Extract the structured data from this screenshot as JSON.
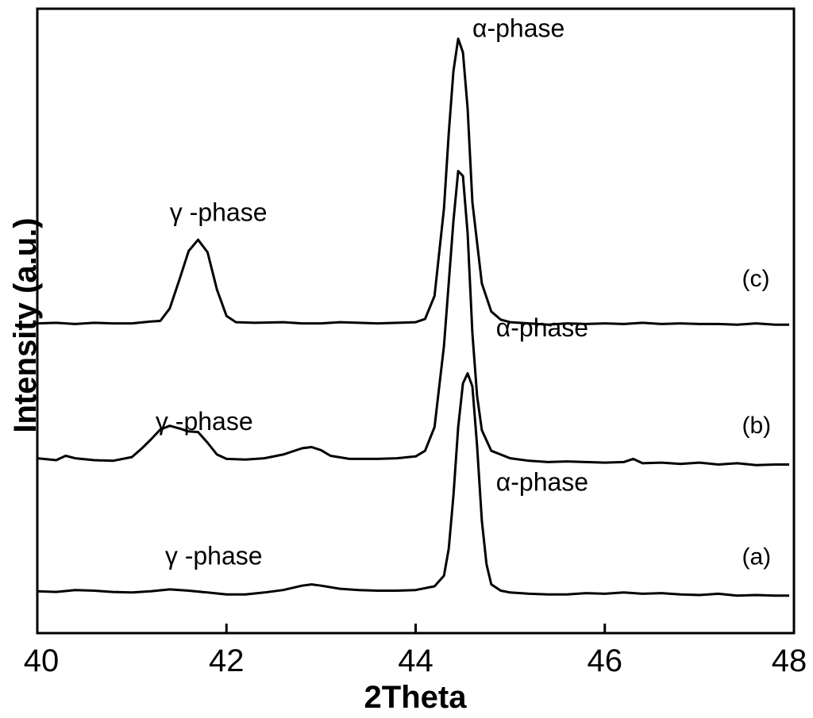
{
  "chart_data": {
    "type": "line",
    "xlabel": "2Theta",
    "ylabel": "Intensity (a.u.)",
    "xlim": [
      40,
      48
    ],
    "ylim": [
      0,
      100
    ],
    "xticks": [
      40,
      42,
      44,
      46,
      48
    ],
    "yticks_shown": false,
    "grid": false,
    "series": [
      {
        "name": "(a)",
        "points": [
          [
            40.0,
            6.7
          ],
          [
            40.2,
            6.6
          ],
          [
            40.4,
            6.9
          ],
          [
            40.6,
            6.8
          ],
          [
            40.8,
            6.6
          ],
          [
            41.0,
            6.5
          ],
          [
            41.2,
            6.7
          ],
          [
            41.4,
            7.0
          ],
          [
            41.6,
            6.8
          ],
          [
            41.8,
            6.5
          ],
          [
            42.0,
            6.2
          ],
          [
            42.2,
            6.2
          ],
          [
            42.4,
            6.5
          ],
          [
            42.6,
            6.9
          ],
          [
            42.8,
            7.6
          ],
          [
            42.9,
            7.8
          ],
          [
            43.0,
            7.6
          ],
          [
            43.2,
            7.1
          ],
          [
            43.4,
            6.9
          ],
          [
            43.6,
            6.8
          ],
          [
            43.8,
            6.8
          ],
          [
            44.0,
            6.9
          ],
          [
            44.2,
            7.5
          ],
          [
            44.3,
            9.2
          ],
          [
            44.35,
            13.5
          ],
          [
            44.4,
            22.0
          ],
          [
            44.45,
            33.0
          ],
          [
            44.5,
            40.0
          ],
          [
            44.55,
            41.6
          ],
          [
            44.6,
            39.5
          ],
          [
            44.65,
            30.0
          ],
          [
            44.7,
            18.0
          ],
          [
            44.75,
            11.0
          ],
          [
            44.8,
            7.8
          ],
          [
            44.9,
            6.8
          ],
          [
            45.0,
            6.5
          ],
          [
            45.2,
            6.3
          ],
          [
            45.4,
            6.2
          ],
          [
            45.6,
            6.2
          ],
          [
            45.8,
            6.4
          ],
          [
            46.0,
            6.3
          ],
          [
            46.2,
            6.5
          ],
          [
            46.4,
            6.3
          ],
          [
            46.6,
            6.4
          ],
          [
            46.8,
            6.2
          ],
          [
            47.0,
            6.1
          ],
          [
            47.2,
            6.3
          ],
          [
            47.4,
            6.0
          ],
          [
            47.6,
            6.1
          ],
          [
            47.8,
            6.0
          ],
          [
            47.95,
            6.0
          ]
        ]
      },
      {
        "name": "(b)",
        "points": [
          [
            40.0,
            28.0
          ],
          [
            40.2,
            27.7
          ],
          [
            40.3,
            28.4
          ],
          [
            40.4,
            28.0
          ],
          [
            40.6,
            27.7
          ],
          [
            40.8,
            27.6
          ],
          [
            41.0,
            28.2
          ],
          [
            41.1,
            29.5
          ],
          [
            41.2,
            31.0
          ],
          [
            41.3,
            32.6
          ],
          [
            41.4,
            33.2
          ],
          [
            41.5,
            32.8
          ],
          [
            41.6,
            32.3
          ],
          [
            41.7,
            32.2
          ],
          [
            41.8,
            30.5
          ],
          [
            41.9,
            28.6
          ],
          [
            42.0,
            27.9
          ],
          [
            42.2,
            27.8
          ],
          [
            42.4,
            28.0
          ],
          [
            42.6,
            28.6
          ],
          [
            42.8,
            29.6
          ],
          [
            42.9,
            29.8
          ],
          [
            43.0,
            29.3
          ],
          [
            43.1,
            28.4
          ],
          [
            43.3,
            27.9
          ],
          [
            43.6,
            27.9
          ],
          [
            43.8,
            28.0
          ],
          [
            44.0,
            28.3
          ],
          [
            44.1,
            29.2
          ],
          [
            44.2,
            33.0
          ],
          [
            44.3,
            46.0
          ],
          [
            44.4,
            66.0
          ],
          [
            44.45,
            74.0
          ],
          [
            44.5,
            73.2
          ],
          [
            44.55,
            64.0
          ],
          [
            44.6,
            48.0
          ],
          [
            44.65,
            38.0
          ],
          [
            44.7,
            32.5
          ],
          [
            44.8,
            29.2
          ],
          [
            45.0,
            28.0
          ],
          [
            45.2,
            27.6
          ],
          [
            45.4,
            27.4
          ],
          [
            45.6,
            27.5
          ],
          [
            45.8,
            27.4
          ],
          [
            46.0,
            27.3
          ],
          [
            46.2,
            27.4
          ],
          [
            46.3,
            27.9
          ],
          [
            46.4,
            27.2
          ],
          [
            46.6,
            27.3
          ],
          [
            46.8,
            27.1
          ],
          [
            47.0,
            27.3
          ],
          [
            47.2,
            27.0
          ],
          [
            47.4,
            27.2
          ],
          [
            47.6,
            26.9
          ],
          [
            47.8,
            27.0
          ],
          [
            47.95,
            27.0
          ]
        ]
      },
      {
        "name": "(c)",
        "points": [
          [
            40.0,
            49.6
          ],
          [
            40.2,
            49.7
          ],
          [
            40.4,
            49.5
          ],
          [
            40.6,
            49.7
          ],
          [
            40.8,
            49.6
          ],
          [
            41.0,
            49.6
          ],
          [
            41.2,
            49.9
          ],
          [
            41.3,
            50.0
          ],
          [
            41.4,
            52.0
          ],
          [
            41.5,
            56.5
          ],
          [
            41.6,
            61.2
          ],
          [
            41.7,
            63.0
          ],
          [
            41.8,
            61.0
          ],
          [
            41.9,
            55.0
          ],
          [
            42.0,
            50.8
          ],
          [
            42.1,
            49.8
          ],
          [
            42.3,
            49.7
          ],
          [
            42.6,
            49.8
          ],
          [
            42.8,
            49.6
          ],
          [
            43.0,
            49.6
          ],
          [
            43.2,
            49.8
          ],
          [
            43.4,
            49.7
          ],
          [
            43.6,
            49.6
          ],
          [
            43.8,
            49.7
          ],
          [
            44.0,
            49.8
          ],
          [
            44.1,
            50.3
          ],
          [
            44.2,
            54.0
          ],
          [
            44.3,
            68.0
          ],
          [
            44.35,
            80.0
          ],
          [
            44.4,
            90.0
          ],
          [
            44.45,
            95.2
          ],
          [
            44.5,
            93.0
          ],
          [
            44.55,
            84.0
          ],
          [
            44.6,
            69.0
          ],
          [
            44.7,
            56.0
          ],
          [
            44.8,
            51.5
          ],
          [
            44.9,
            50.2
          ],
          [
            45.0,
            49.8
          ],
          [
            45.2,
            49.6
          ],
          [
            45.4,
            49.4
          ],
          [
            45.6,
            49.6
          ],
          [
            45.8,
            49.5
          ],
          [
            46.0,
            49.6
          ],
          [
            46.2,
            49.5
          ],
          [
            46.4,
            49.7
          ],
          [
            46.6,
            49.5
          ],
          [
            46.8,
            49.6
          ],
          [
            47.0,
            49.5
          ],
          [
            47.2,
            49.5
          ],
          [
            47.4,
            49.4
          ],
          [
            47.6,
            49.6
          ],
          [
            47.8,
            49.4
          ],
          [
            47.95,
            49.4
          ]
        ]
      }
    ],
    "annotations": [
      {
        "text": "α-phase",
        "x": 44.6,
        "y": 95.5
      },
      {
        "text": "γ -phase",
        "x": 41.4,
        "y": 66.0
      },
      {
        "text": "(c)",
        "x": 47.45,
        "y": 55.5
      },
      {
        "text": "α-phase",
        "x": 44.85,
        "y": 47.5
      },
      {
        "text": "γ -phase",
        "x": 41.25,
        "y": 32.5
      },
      {
        "text": "(b)",
        "x": 47.45,
        "y": 32.0
      },
      {
        "text": "α-phase",
        "x": 44.85,
        "y": 22.8
      },
      {
        "text": "γ -phase",
        "x": 41.35,
        "y": 11.0
      },
      {
        "text": "(a)",
        "x": 47.45,
        "y": 11.0
      }
    ]
  }
}
